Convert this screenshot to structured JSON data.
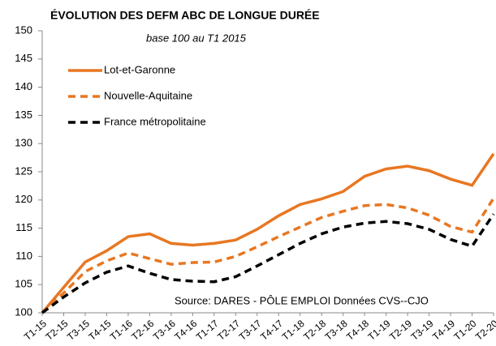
{
  "chart_data": {
    "type": "line",
    "title": "ÉVOLUTION DES DEFM ABC DE LONGUE DURÉE",
    "subtitle": "base 100 au T1 2015",
    "annotation": "Source: DARES - PÔLE EMPLOI  Données CVS--CJO",
    "categories": [
      "T1-15",
      "T2-15",
      "T3-15",
      "T4-15",
      "T1-16",
      "T2-16",
      "T3-16",
      "T4-16",
      "T1-17",
      "T2-17",
      "T3-17",
      "T4-17",
      "T1-18",
      "T2-18",
      "T3-18",
      "T4-18",
      "T1-19",
      "T2-19",
      "T3-19",
      "T4-19",
      "T1-20",
      "T2-20"
    ],
    "series": [
      {
        "name": "Lot-et-Garonne",
        "color": "#e87722",
        "dash": "solid",
        "values": [
          100,
          104.5,
          109,
          111,
          113.5,
          114,
          112.3,
          112,
          112.3,
          112.9,
          114.8,
          117.2,
          119.2,
          120.2,
          121.5,
          124.2,
          125.5,
          126,
          125.2,
          123.7,
          122.6,
          128.2
        ]
      },
      {
        "name": "Nouvelle-Aquitaine",
        "color": "#e87722",
        "dash": "dashed",
        "values": [
          100,
          103.5,
          107.3,
          109.2,
          110.6,
          109.6,
          108.6,
          108.9,
          109,
          110,
          111.7,
          113.5,
          115.2,
          116.9,
          118,
          119,
          119.2,
          118.6,
          117.3,
          115.3,
          114.3,
          120.3
        ]
      },
      {
        "name": "France métropolitaine",
        "color": "#000000",
        "dash": "dashed",
        "values": [
          100,
          102.8,
          105.3,
          107.2,
          108.3,
          107,
          105.9,
          105.6,
          105.5,
          106.4,
          108.3,
          110.3,
          112.3,
          114,
          115.2,
          115.9,
          116.2,
          115.8,
          114.8,
          113,
          111.8,
          117.5
        ]
      }
    ],
    "ylim": [
      100,
      150
    ],
    "yticks": [
      100,
      105,
      110,
      115,
      120,
      125,
      130,
      135,
      140,
      145,
      150
    ],
    "grid": false
  }
}
